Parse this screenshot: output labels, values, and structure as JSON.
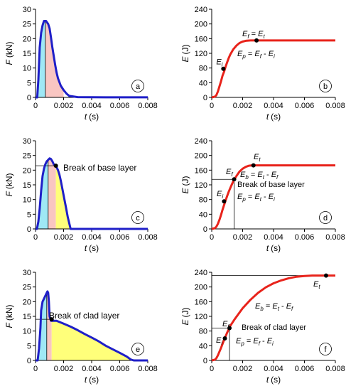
{
  "chart_data": [
    {
      "id": "a",
      "type": "area",
      "panel_label": "a",
      "xlabel": "t",
      "xunit": "(s)",
      "ylabel": "F",
      "yunit": "(kN)",
      "xlim": [
        0,
        0.008
      ],
      "ylim": [
        0,
        30
      ],
      "xticks": [
        "0",
        "0.002",
        "0.004",
        "0.006",
        "0.008"
      ],
      "yticks": [
        "0",
        "5",
        "10",
        "15",
        "20",
        "25",
        "30"
      ],
      "series": [
        {
          "x": [
            0,
            0.00012,
            0.0002,
            0.0003,
            0.0004,
            0.0005,
            0.0006,
            0.00075,
            0.0009,
            0.001,
            0.0011,
            0.0012,
            0.0013,
            0.0014,
            0.0015,
            0.0016,
            0.0018,
            0.002,
            0.0022,
            0.0024,
            0.003,
            0.004,
            0.005,
            0.006,
            0.007,
            0.008
          ],
          "y": [
            0,
            0,
            6,
            17,
            22,
            24.5,
            26,
            26,
            25,
            23.5,
            20.5,
            17,
            14,
            11,
            8.5,
            6.5,
            4,
            2.5,
            1.3,
            0.5,
            0.1,
            0.05,
            0.03,
            0.03,
            0.03,
            0.03
          ]
        }
      ],
      "fills": [
        {
          "from": 5e-05,
          "to": 0.0007,
          "color": "#9fe8f5"
        },
        {
          "from": 0.0007,
          "to": 0.002,
          "color": "#f9c6c2"
        }
      ],
      "vlines": [
        0.0007
      ],
      "annotations": []
    },
    {
      "id": "b",
      "type": "line",
      "panel_label": "b",
      "xlabel": "t",
      "xunit": "(s)",
      "ylabel": "E",
      "yunit": "(J)",
      "xlim": [
        0,
        0.008
      ],
      "ylim": [
        0,
        240
      ],
      "xticks": [
        "0",
        "0.002",
        "0.004",
        "0.006",
        "0.008"
      ],
      "yticks": [
        "0",
        "40",
        "80",
        "120",
        "160",
        "200",
        "240"
      ],
      "series": [
        {
          "x": [
            0,
            0.0002,
            0.0003,
            0.0004,
            0.0005,
            0.0006,
            0.0007,
            0.0008,
            0.0009,
            0.001,
            0.0011,
            0.0012,
            0.0014,
            0.0016,
            0.0018,
            0.002,
            0.0022,
            0.0025,
            0.003,
            0.004,
            0.005,
            0.006,
            0.007,
            0.008
          ],
          "y": [
            0,
            2,
            6,
            16,
            30,
            44,
            59,
            70,
            84,
            96,
            107,
            117,
            131,
            141,
            148,
            152,
            154,
            155,
            155,
            155,
            155,
            155,
            155,
            155
          ]
        }
      ],
      "points": [
        {
          "x": 0.00075,
          "y": 78,
          "label": "E",
          "sub": "i"
        },
        {
          "x": 0.0029,
          "y": 155,
          "label": "",
          "sub": ""
        }
      ],
      "annotations": [
        {
          "parts": [
            [
              "E",
              ""
            ],
            [
              "f",
              "sub"
            ],
            [
              " = ",
              ""
            ],
            [
              "E",
              ""
            ],
            [
              "t",
              "sub"
            ]
          ]
        },
        {
          "parts": [
            [
              "E",
              ""
            ],
            [
              "p",
              "sub"
            ],
            [
              " = ",
              ""
            ],
            [
              "E",
              ""
            ],
            [
              "f",
              "sub"
            ],
            [
              " - ",
              ""
            ],
            [
              "E",
              ""
            ],
            [
              "i",
              "sub"
            ]
          ]
        }
      ]
    },
    {
      "id": "c",
      "type": "area",
      "panel_label": "c",
      "xlabel": "t",
      "xunit": "(s)",
      "ylabel": "F",
      "yunit": "(kN)",
      "xlim": [
        0,
        0.008
      ],
      "ylim": [
        0,
        30
      ],
      "xticks": [
        "0",
        "0.002",
        "0.004",
        "0.006",
        "0.008"
      ],
      "yticks": [
        "0",
        "5",
        "10",
        "15",
        "20",
        "25",
        "30"
      ],
      "series": [
        {
          "x": [
            0,
            0.0001,
            0.0002,
            0.0003,
            0.0004,
            0.0005,
            0.0006,
            0.0007,
            0.0008,
            0.0009,
            0.001,
            0.0011,
            0.0012,
            0.0013,
            0.0014,
            0.0015,
            0.0016,
            0.0017,
            0.0018,
            0.0019,
            0.002,
            0.0021,
            0.0022,
            0.0023,
            0.0024,
            0.0025,
            0.003,
            0.004,
            0.005,
            0.006,
            0.007,
            0.008
          ],
          "y": [
            0,
            0,
            2.5,
            7,
            13,
            18,
            20.5,
            22,
            23,
            23.5,
            24,
            23.8,
            23,
            22,
            21.5,
            21,
            20,
            18.5,
            16.5,
            14,
            11.5,
            9,
            6.5,
            4,
            2,
            0,
            0,
            0,
            0,
            0,
            0,
            0
          ]
        }
      ],
      "fills": [
        {
          "from": 0.0001,
          "to": 0.0009,
          "color": "#9fe8f5"
        },
        {
          "from": 0.0009,
          "to": 0.00145,
          "color": "#f9c6c2"
        },
        {
          "from": 0.00145,
          "to": 0.0025,
          "color": "#ffff7a"
        }
      ],
      "vlines": [
        0.0009
      ],
      "hline": {
        "y": 21.5,
        "to": 0.00145
      },
      "points": [
        {
          "x": 0.00145,
          "y": 21.5
        }
      ],
      "annotations": [
        {
          "text": "Break of base layer"
        }
      ]
    },
    {
      "id": "d",
      "type": "line",
      "panel_label": "d",
      "xlabel": "t",
      "xunit": "(s)",
      "ylabel": "E",
      "yunit": "(J)",
      "xlim": [
        0,
        0.008
      ],
      "ylim": [
        0,
        240
      ],
      "xticks": [
        "0",
        "0.002",
        "0.004",
        "0.006",
        "0.008"
      ],
      "yticks": [
        "0",
        "40",
        "80",
        "120",
        "160",
        "200",
        "240"
      ],
      "series": [
        {
          "x": [
            0,
            0.0002,
            0.0003,
            0.0004,
            0.0005,
            0.0006,
            0.0007,
            0.0008,
            0.0009,
            0.001,
            0.0011,
            0.0012,
            0.0013,
            0.0014,
            0.0015,
            0.0016,
            0.0018,
            0.002,
            0.0022,
            0.0024,
            0.0026,
            0.003,
            0.004,
            0.005,
            0.006,
            0.007,
            0.008
          ],
          "y": [
            0,
            2,
            6,
            14,
            25,
            38,
            52,
            65,
            78,
            90,
            101,
            111,
            121,
            130,
            137,
            144,
            156,
            164,
            169,
            172,
            173,
            173,
            173,
            173,
            173,
            173,
            173
          ]
        }
      ],
      "points": [
        {
          "x": 0.0008,
          "y": 75
        },
        {
          "x": 0.00145,
          "y": 135
        },
        {
          "x": 0.0027,
          "y": 173
        }
      ],
      "hline": {
        "y": 135,
        "to": 0.00145
      },
      "vline_point": {
        "x": 0.00145,
        "y": 135
      },
      "annotations": [
        {
          "parts": [
            [
              "E",
              ""
            ],
            [
              "t",
              "sub"
            ]
          ]
        },
        {
          "parts": [
            [
              "E",
              ""
            ],
            [
              "f",
              "sub"
            ]
          ]
        },
        {
          "parts": [
            [
              "E",
              ""
            ],
            [
              "b",
              "sub"
            ],
            [
              " = ",
              ""
            ],
            [
              "E",
              ""
            ],
            [
              "t",
              "sub"
            ],
            [
              " - ",
              ""
            ],
            [
              "E",
              ""
            ],
            [
              "f",
              "sub"
            ]
          ]
        },
        {
          "parts": [
            [
              "Break of base layer",
              ""
            ]
          ]
        },
        {
          "parts": [
            [
              "E",
              ""
            ],
            [
              "i",
              "sub"
            ]
          ]
        },
        {
          "parts": [
            [
              "E",
              ""
            ],
            [
              "p",
              "sub"
            ],
            [
              " = ",
              ""
            ],
            [
              "E",
              ""
            ],
            [
              "t",
              "sub"
            ],
            [
              " - ",
              ""
            ],
            [
              "E",
              ""
            ],
            [
              "i",
              "sub"
            ]
          ]
        }
      ]
    },
    {
      "id": "e",
      "type": "area",
      "panel_label": "e",
      "xlabel": "t",
      "xunit": "(s)",
      "ylabel": "F",
      "yunit": "(kN)",
      "xlim": [
        0,
        0.008
      ],
      "ylim": [
        0,
        30
      ],
      "xticks": [
        "0",
        "0.002",
        "0.004",
        "0.006",
        "0.008"
      ],
      "yticks": [
        "0",
        "5",
        "10",
        "15",
        "20",
        "25",
        "30"
      ],
      "series": [
        {
          "x": [
            0,
            0.00015,
            0.00025,
            0.00035,
            0.0004,
            0.0005,
            0.0006,
            0.0007,
            0.0008,
            0.00085,
            0.0009,
            0.00095,
            0.001,
            0.0011,
            0.0012,
            0.0013,
            0.0015,
            0.002,
            0.0025,
            0.003,
            0.0035,
            0.004,
            0.0045,
            0.005,
            0.0055,
            0.006,
            0.0065,
            0.0068,
            0.007,
            0.008
          ],
          "y": [
            0,
            0,
            4,
            11,
            17,
            20,
            21,
            22,
            23,
            23.5,
            23,
            20,
            15,
            13.5,
            13.5,
            13.5,
            13.5,
            12.5,
            11.5,
            10.3,
            9,
            7.8,
            6.5,
            5,
            3.8,
            2.6,
            1.3,
            0.3,
            0,
            0
          ]
        }
      ],
      "fills": [
        {
          "from": 0.0002,
          "to": 0.0008,
          "color": "#9fe8f5"
        },
        {
          "from": 0.0008,
          "to": 0.00115,
          "color": "#f9c6c2"
        },
        {
          "from": 0.00115,
          "to": 0.0068,
          "color": "#ffff7a"
        }
      ],
      "vlines": [
        0.0008
      ],
      "hline": {
        "y": 14,
        "to": 0.00115
      },
      "points": [
        {
          "x": 0.00115,
          "y": 14
        }
      ],
      "annotations": [
        {
          "text": "Break of clad layer"
        }
      ]
    },
    {
      "id": "f",
      "type": "line",
      "panel_label": "f",
      "xlabel": "t",
      "xunit": "(s)",
      "ylabel": "E",
      "yunit": "(J)",
      "xlim": [
        0,
        0.008
      ],
      "ylim": [
        0,
        240
      ],
      "xticks": [
        "0",
        "0.002",
        "0.004",
        "0.006",
        "0.008"
      ],
      "yticks": [
        "0",
        "40",
        "80",
        "120",
        "160",
        "200",
        "240"
      ],
      "series": [
        {
          "x": [
            0,
            0.0002,
            0.0003,
            0.0004,
            0.0005,
            0.0006,
            0.0007,
            0.0008,
            0.0009,
            0.001,
            0.0012,
            0.0015,
            0.002,
            0.0025,
            0.003,
            0.0035,
            0.004,
            0.0045,
            0.005,
            0.0055,
            0.006,
            0.0065,
            0.007,
            0.0075,
            0.008
          ],
          "y": [
            0,
            2,
            6,
            14,
            24,
            34,
            45,
            56,
            66,
            76,
            94,
            113,
            142,
            165,
            184,
            199,
            210,
            218,
            224,
            228,
            230,
            231,
            231,
            231,
            231
          ]
        }
      ],
      "points": [
        {
          "x": 0.00085,
          "y": 60
        },
        {
          "x": 0.00115,
          "y": 88
        },
        {
          "x": 0.0074,
          "y": 231
        }
      ],
      "hline": {
        "y": 231,
        "to": 0.0074
      },
      "hline2": {
        "y": 88,
        "to": 0.00115
      },
      "vline_point": {
        "x": 0.00115,
        "y": 88
      },
      "annotations": [
        {
          "parts": [
            [
              "E",
              ""
            ],
            [
              "t",
              "sub"
            ]
          ]
        },
        {
          "parts": [
            [
              "E",
              ""
            ],
            [
              "b",
              "sub"
            ],
            [
              " = ",
              ""
            ],
            [
              "E",
              ""
            ],
            [
              "t",
              "sub"
            ],
            [
              " - ",
              ""
            ],
            [
              "E",
              ""
            ],
            [
              "f",
              "sub"
            ]
          ]
        },
        {
          "parts": [
            [
              "E",
              ""
            ],
            [
              "f",
              "sub"
            ]
          ]
        },
        {
          "parts": [
            [
              "Break of clad layer",
              ""
            ]
          ]
        },
        {
          "parts": [
            [
              "E",
              ""
            ],
            [
              "i",
              "sub"
            ]
          ]
        },
        {
          "parts": [
            [
              "E",
              ""
            ],
            [
              "p",
              "sub"
            ],
            [
              " = ",
              ""
            ],
            [
              "E",
              ""
            ],
            [
              "f",
              "sub"
            ],
            [
              " - ",
              ""
            ],
            [
              "E",
              ""
            ],
            [
              "i",
              "sub"
            ]
          ]
        }
      ]
    }
  ]
}
